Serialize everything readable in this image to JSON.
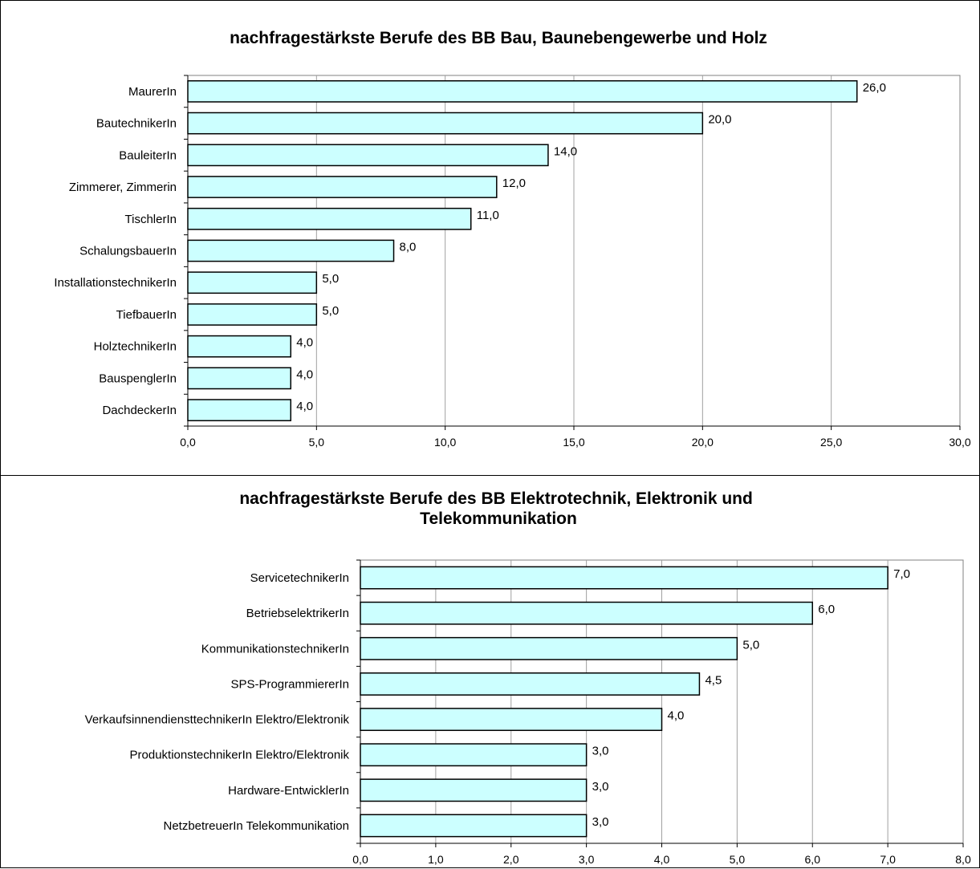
{
  "chart_data": [
    {
      "type": "bar",
      "orientation": "horizontal",
      "title": "nachfragestärkste Berufe des BB Bau, Baunebengewerbe und Holz",
      "categories": [
        "MaurerIn",
        "BautechnikerIn",
        "BauleiterIn",
        "Zimmerer, Zimmerin",
        "TischlerIn",
        "SchalungsbauerIn",
        "InstallationstechnikerIn",
        "TiefbauerIn",
        "HolztechnikerIn",
        "BauspenglerIn",
        "DachdeckerIn"
      ],
      "values": [
        26.0,
        20.0,
        14.0,
        12.0,
        11.0,
        8.0,
        5.0,
        5.0,
        4.0,
        4.0,
        4.0
      ],
      "data_labels": [
        "26,0",
        "20,0",
        "14,0",
        "12,0",
        "11,0",
        "8,0",
        "5,0",
        "5,0",
        "4,0",
        "4,0",
        "4,0"
      ],
      "xlim": [
        0,
        30
      ],
      "xticks": [
        "0,0",
        "5,0",
        "10,0",
        "15,0",
        "20,0",
        "25,0",
        "30,0"
      ],
      "grid": true,
      "bar_color": "#ccffff"
    },
    {
      "type": "bar",
      "orientation": "horizontal",
      "title": "nachfragestärkste Berufe des BB Elektrotechnik, Elektronik und Telekommunikation",
      "categories": [
        "ServicetechnikerIn",
        "BetriebselektrikerIn",
        "KommunikationstechnikerIn",
        "SPS-ProgrammiererIn",
        "VerkaufsinnendiensttechnikerIn Elektro/Elektronik",
        "ProduktionstechnikerIn Elektro/Elektronik",
        "Hardware-EntwicklerIn",
        "NetzbetreuerIn Telekommunikation"
      ],
      "values": [
        7.0,
        6.0,
        5.0,
        4.5,
        4.0,
        3.0,
        3.0,
        3.0
      ],
      "data_labels": [
        "7,0",
        "6,0",
        "5,0",
        "4,5",
        "4,0",
        "3,0",
        "3,0",
        "3,0"
      ],
      "xlim": [
        0,
        8
      ],
      "xticks": [
        "0,0",
        "1,0",
        "2,0",
        "3,0",
        "4,0",
        "5,0",
        "6,0",
        "7,0",
        "8,0"
      ],
      "grid": true,
      "bar_color": "#ccffff"
    }
  ]
}
